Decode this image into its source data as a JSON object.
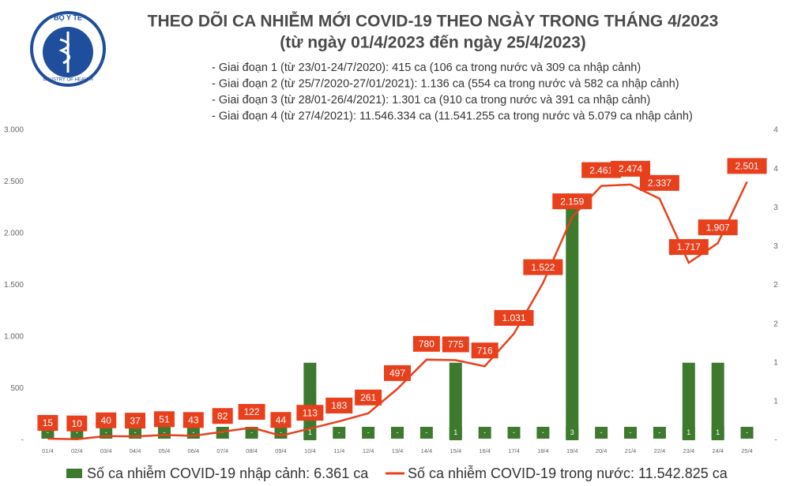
{
  "logo": {
    "top": "BỘ Y TẾ",
    "bottom": "MINISTRY OF HEALTH"
  },
  "chart_data": {
    "type": "combo",
    "title": "THEO DÕI CA NHIỄM MỚI COVID-19 THEO NGÀY TRONG THÁNG 4/2023",
    "subtitle": "(từ ngày 01/4/2023 đến ngày 25/4/2023)",
    "notes": [
      "- Giai đoạn 1 (từ 23/01-24/7/2020): 415 ca (106 ca trong nước và 309 ca nhập cảnh)",
      "- Giai đoạn 2 (từ 25/7/2020-27/01/2021): 1.136 ca (554 ca trong nước và 582 ca nhập cảnh)",
      "- Giai đoạn 3 (từ 28/01-26/4/2021): 1.301 ca (910 ca trong nước và 391 ca nhập cảnh)",
      "- Giai đoạn 4 (từ 27/4/2021): 11.546.334 ca (11.541.255 ca trong nước và 5.079 ca nhập cảnh)"
    ],
    "categories": [
      "01/4",
      "02/4",
      "03/4",
      "04/4",
      "05/4",
      "06/4",
      "07/4",
      "08/4",
      "09/4",
      "10/4",
      "11/4",
      "12/4",
      "13/4",
      "14/4",
      "15/4",
      "16/4",
      "17/4",
      "18/4",
      "19/4",
      "20/4",
      "21/4",
      "22/4",
      "23/4",
      "24/4",
      "25/4"
    ],
    "series": [
      {
        "name": "Số ca nhiễm COVID-19 nhập cảnh: 6.361 ca",
        "type": "bar",
        "axis": "y2",
        "color": "#3d7a2e",
        "values": [
          0,
          0,
          0,
          0,
          0,
          0,
          0,
          0,
          0,
          1,
          0,
          0,
          0,
          0,
          1,
          0,
          0,
          0,
          3,
          0,
          0,
          0,
          1,
          1,
          0
        ],
        "value_labels": [
          "-",
          "-",
          "-",
          "-",
          "-",
          "-",
          "-",
          "-",
          "-",
          "1",
          "-",
          "-",
          "-",
          "-",
          "1",
          "-",
          "-",
          "-",
          "3",
          "-",
          "-",
          "-",
          "1",
          "1",
          "-"
        ]
      },
      {
        "name": "Số ca nhiễm COVID-19 trong nước: 11.542.825 ca",
        "type": "line",
        "color": "#e8401c",
        "values": [
          15,
          10,
          40,
          37,
          51,
          43,
          82,
          122,
          44,
          113,
          183,
          261,
          497,
          780,
          775,
          716,
          1031,
          1522,
          2159,
          2461,
          2474,
          2337,
          1717,
          1907,
          2501
        ],
        "value_labels": [
          "15",
          "10",
          "40",
          "37",
          "51",
          "43",
          "82",
          "122",
          "44",
          "113",
          "183",
          "261",
          "497",
          "780",
          "775",
          "716",
          "1.031",
          "1.522",
          "2.159",
          "2.461",
          "2.474",
          "2.337",
          "1.717",
          "1.907",
          "2.501"
        ]
      }
    ],
    "ylim": [
      0,
      3000
    ],
    "yticks": [
      {
        "value": 0,
        "label": "-"
      },
      500,
      {
        "value": 1000,
        "label": "1.000"
      },
      {
        "value": 1500,
        "label": "1.500"
      },
      {
        "value": 2000,
        "label": "2.000"
      },
      {
        "value": 2500,
        "label": "2.500"
      },
      {
        "value": 3000,
        "label": "3.000"
      }
    ],
    "y2lim": [
      0,
      4
    ],
    "y2ticks": [
      {
        "value": 0,
        "label": "-"
      },
      {
        "value": 0.5,
        "label": "1"
      },
      1,
      {
        "value": 1.5,
        "label": "2"
      },
      2,
      {
        "value": 2.5,
        "label": "3"
      },
      3,
      {
        "value": 3.5,
        "label": "4"
      },
      4
    ]
  }
}
